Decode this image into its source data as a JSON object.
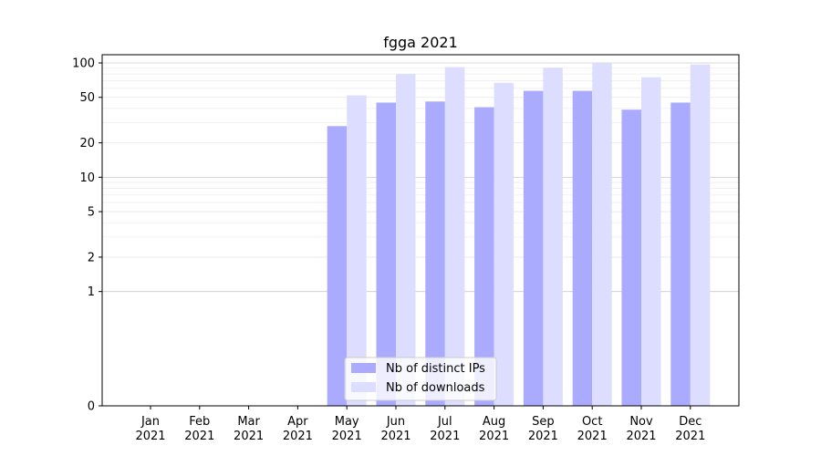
{
  "chart_data": {
    "type": "bar",
    "title": "fgga 2021",
    "xlabel": "",
    "ylabel": "",
    "categories": [
      "Jan\n2021",
      "Feb\n2021",
      "Mar\n2021",
      "Apr\n2021",
      "May\n2021",
      "Jun\n2021",
      "Jul\n2021",
      "Aug\n2021",
      "Sep\n2021",
      "Oct\n2021",
      "Nov\n2021",
      "Dec\n2021"
    ],
    "series": [
      {
        "name": "Nb of distinct IPs",
        "color": "#aaaaff",
        "values": [
          0,
          0,
          0,
          0,
          28,
          45,
          46,
          41,
          57,
          57,
          39,
          45
        ]
      },
      {
        "name": "Nb of downloads",
        "color": "#ddddff",
        "values": [
          0,
          0,
          0,
          0,
          52,
          80,
          92,
          67,
          91,
          100,
          75,
          97
        ]
      }
    ],
    "y_scale": "symlog",
    "ylim": [
      0,
      118
    ],
    "y_ticks": [
      0,
      1,
      2,
      5,
      10,
      20,
      50,
      100
    ],
    "grid": true,
    "legend_position": "lower-center"
  }
}
